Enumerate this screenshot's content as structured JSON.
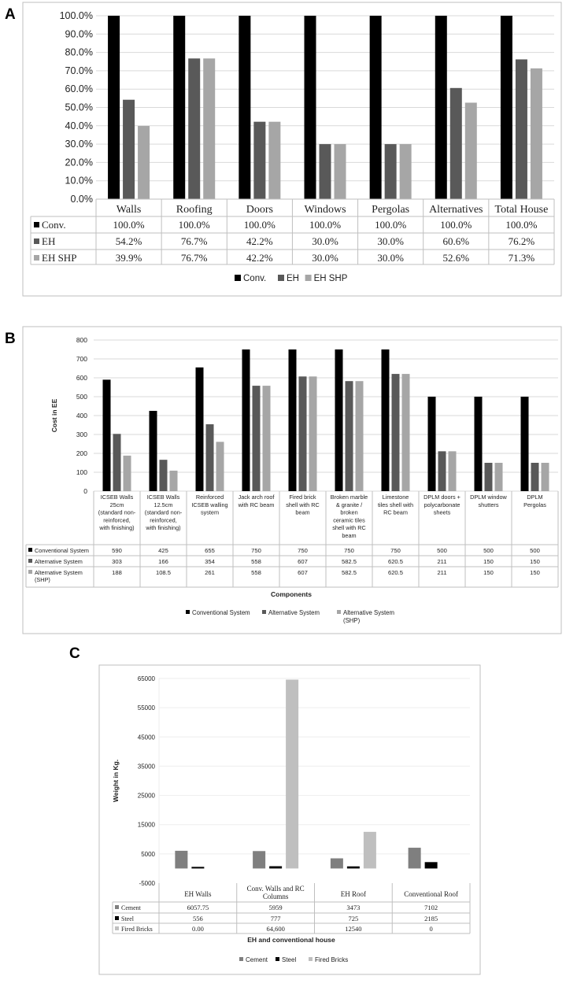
{
  "colors": {
    "conv": "#000000",
    "eh": "#595959",
    "shp": "#a6a6a6",
    "grid": "#d9d9d9",
    "frame": "#bfbfbf",
    "cement": "#7f7f7f",
    "steel": "#000000",
    "bricks": "#bfbfbf"
  },
  "panels": {
    "a": "A",
    "b": "B",
    "c": "C"
  },
  "chart_data": [
    {
      "id": "A",
      "type": "bar",
      "categories": [
        "Walls",
        "Roofing",
        "Doors",
        "Windows",
        "Pergolas",
        "Alternatives",
        "Total House"
      ],
      "series": [
        {
          "name": "Conv.",
          "values": [
            100.0,
            100.0,
            100.0,
            100.0,
            100.0,
            100.0,
            100.0
          ],
          "labels": [
            "100.0%",
            "100.0%",
            "100.0%",
            "100.0%",
            "100.0%",
            "100.0%",
            "100.0%"
          ]
        },
        {
          "name": "EH",
          "values": [
            54.2,
            76.7,
            42.2,
            30.0,
            30.0,
            60.6,
            76.2
          ],
          "labels": [
            "54.2%",
            "76.7%",
            "42.2%",
            "30.0%",
            "30.0%",
            "60.6%",
            "76.2%"
          ]
        },
        {
          "name": "EH SHP",
          "values": [
            39.9,
            76.7,
            42.2,
            30.0,
            30.0,
            52.6,
            71.3
          ],
          "labels": [
            "39.9%",
            "76.7%",
            "42.2%",
            "30.0%",
            "30.0%",
            "52.6%",
            "71.3%"
          ]
        }
      ],
      "yticks": [
        "0.0%",
        "10.0%",
        "20.0%",
        "30.0%",
        "40.0%",
        "50.0%",
        "60.0%",
        "70.0%",
        "80.0%",
        "90.0%",
        "100.0%"
      ],
      "ylim": [
        0,
        100
      ],
      "title": "",
      "xlabel": "",
      "ylabel": "",
      "legend": "bottom",
      "grid": true
    },
    {
      "id": "B",
      "type": "bar",
      "categories": [
        [
          "ICSEB Walls",
          "25cm",
          "(standard non-",
          "reinforced,",
          "with finishing)"
        ],
        [
          "ICSEB Walls",
          "12.5cm",
          "(standard non-",
          "reinforced,",
          "with finishing)"
        ],
        [
          "Reinforced",
          "ICSEB walling",
          "system"
        ],
        [
          "Jack arch roof",
          "with RC beam"
        ],
        [
          "Fired brick",
          "shell with RC",
          "beam"
        ],
        [
          "Broken marble",
          "& granite /",
          "broken",
          "ceramic tiles",
          "shell with RC",
          "beam"
        ],
        [
          "Limestone",
          "tiles shell with",
          "RC beam"
        ],
        [
          "DPLM doors +",
          "polycarbonate",
          "sheets"
        ],
        [
          "DPLM window",
          "shutters"
        ],
        [
          "DPLM",
          "Pergolas"
        ]
      ],
      "series": [
        {
          "name": "Conventional System",
          "values": [
            590,
            425,
            655,
            750,
            750,
            750,
            750,
            500,
            500,
            500
          ],
          "labels": [
            "590",
            "425",
            "655",
            "750",
            "750",
            "750",
            "750",
            "500",
            "500",
            "500"
          ]
        },
        {
          "name": "Alternative System",
          "values": [
            303,
            166,
            354,
            558,
            607,
            582.5,
            620.5,
            211,
            150,
            150
          ],
          "labels": [
            "303",
            "166",
            "354",
            "558",
            "607",
            "582.5",
            "620.5",
            "211",
            "150",
            "150"
          ]
        },
        {
          "name": "Alternative System (SHP)",
          "table_name": [
            "Alternative System",
            "(SHP)"
          ],
          "legend_name": [
            "Alternative System",
            "(SHP)"
          ],
          "values": [
            188,
            108.5,
            261,
            558,
            607,
            582.5,
            620.5,
            211,
            150,
            150
          ],
          "labels": [
            "188",
            "108.5",
            "261",
            "558",
            "607",
            "582.5",
            "620.5",
            "211",
            "150",
            "150"
          ]
        }
      ],
      "yticks": [
        "0",
        "100",
        "200",
        "300",
        "400",
        "500",
        "600",
        "700",
        "800"
      ],
      "ylim": [
        0,
        800
      ],
      "title": "",
      "xlabel": "Components",
      "ylabel": "Cost in EE",
      "legend": "bottom",
      "grid": true
    },
    {
      "id": "C",
      "type": "bar",
      "categories": [
        [
          "EH Walls"
        ],
        [
          "Conv. Walls and RC",
          "Columns"
        ],
        [
          "EH Roof"
        ],
        [
          "Conventional Roof"
        ]
      ],
      "series": [
        {
          "name": "Cement",
          "values": [
            6057.75,
            5959,
            3473,
            7102
          ],
          "labels": [
            "6057.75",
            "5959",
            "3473",
            "7102"
          ]
        },
        {
          "name": "Steel",
          "values": [
            556,
            777,
            725,
            2185
          ],
          "labels": [
            "556",
            "777",
            "725",
            "2185"
          ]
        },
        {
          "name": "Fired Bricks",
          "values": [
            0,
            64600,
            12540,
            0
          ],
          "labels": [
            "0.00",
            "64,600",
            "12540",
            "0"
          ]
        }
      ],
      "yticks": [
        "-5000",
        "5000",
        "15000",
        "25000",
        "35000",
        "45000",
        "55000",
        "65000"
      ],
      "ylim": [
        -5000,
        65000
      ],
      "title": "",
      "xlabel": "EH and conventional house",
      "ylabel": "Weight in Kg.",
      "legend": "bottom",
      "grid": true
    }
  ]
}
